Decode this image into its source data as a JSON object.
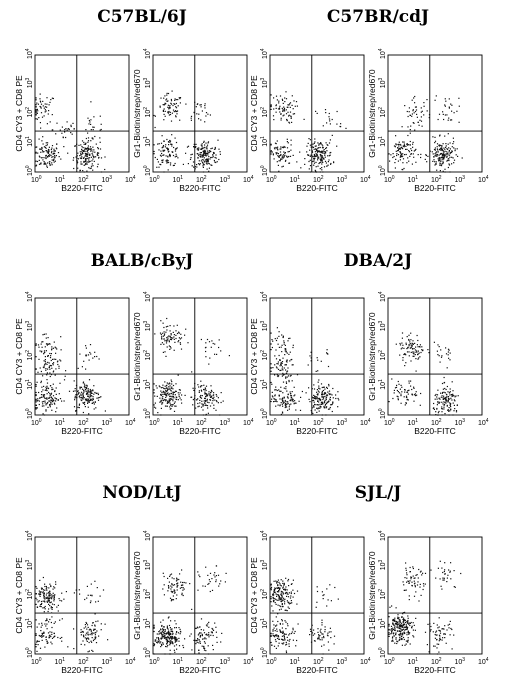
{
  "chart_data": [
    {
      "type": "scatter",
      "title": "C57BL/6J",
      "panels": [
        {
          "xlabel": "B220-FITC",
          "ylabel": "CD4 CY3 + CD8 PE",
          "xscale": "log",
          "yscale": "log",
          "xlim": [
            1,
            10000
          ],
          "ylim": [
            1,
            10000
          ],
          "gate": {
            "x": 60,
            "y": 25
          },
          "clusters": [
            {
              "x": 2,
              "y": 150,
              "n": 55
            },
            {
              "x": 3,
              "y": 4,
              "n": 110
            },
            {
              "x": 150,
              "y": 4,
              "n": 170
            },
            {
              "x": 20,
              "y": 30,
              "n": 25
            },
            {
              "x": 300,
              "y": 40,
              "n": 20
            }
          ]
        },
        {
          "xlabel": "B220-FITC",
          "ylabel": "Gr1-Biotin/strep/red670",
          "xscale": "log",
          "yscale": "log",
          "xlim": [
            1,
            10000
          ],
          "ylim": [
            1,
            10000
          ],
          "gate": {
            "x": 60,
            "y": 25
          },
          "clusters": [
            {
              "x": 5,
              "y": 150,
              "n": 75
            },
            {
              "x": 4,
              "y": 5,
              "n": 100
            },
            {
              "x": 150,
              "y": 4,
              "n": 170
            },
            {
              "x": 80,
              "y": 120,
              "n": 25
            }
          ]
        }
      ]
    },
    {
      "type": "scatter",
      "title": "C57BR/cdJ",
      "panels": [
        {
          "xlabel": "B220-FITC",
          "ylabel": "CD4 CY3 + CD8 PE",
          "xscale": "log",
          "yscale": "log",
          "xlim": [
            1,
            10000
          ],
          "ylim": [
            1,
            10000
          ],
          "gate": {
            "x": 60,
            "y": 25
          },
          "clusters": [
            {
              "x": 3,
              "y": 150,
              "n": 75
            },
            {
              "x": 3,
              "y": 4,
              "n": 80
            },
            {
              "x": 120,
              "y": 4,
              "n": 170
            },
            {
              "x": 300,
              "y": 60,
              "n": 20
            }
          ]
        },
        {
          "xlabel": "B220-FITC",
          "ylabel": "Gr1-Biotin/strep/red670",
          "xscale": "log",
          "yscale": "log",
          "xlim": [
            1,
            10000
          ],
          "ylim": [
            1,
            10000
          ],
          "gate": {
            "x": 60,
            "y": 25
          },
          "clusters": [
            {
              "x": 15,
              "y": 100,
              "n": 45
            },
            {
              "x": 4,
              "y": 5,
              "n": 100
            },
            {
              "x": 200,
              "y": 4,
              "n": 170
            },
            {
              "x": 300,
              "y": 150,
              "n": 30
            }
          ]
        }
      ]
    },
    {
      "type": "scatter",
      "title": "BALB/cByJ",
      "panels": [
        {
          "xlabel": "B220-FITC",
          "ylabel": "CD4 CY3 + CD8 PE",
          "xscale": "log",
          "yscale": "log",
          "xlim": [
            1,
            10000
          ],
          "ylim": [
            1,
            10000
          ],
          "gate": {
            "x": 60,
            "y": 25
          },
          "clusters": [
            {
              "x": 3,
              "y": 250,
              "n": 45
            },
            {
              "x": 3,
              "y": 40,
              "n": 60
            },
            {
              "x": 3,
              "y": 4,
              "n": 120
            },
            {
              "x": 150,
              "y": 5,
              "n": 150
            },
            {
              "x": 200,
              "y": 100,
              "n": 20
            }
          ]
        },
        {
          "xlabel": "B220-FITC",
          "ylabel": "Gr1-Biotin/strep/red670",
          "xscale": "log",
          "yscale": "log",
          "xlim": [
            1,
            10000
          ],
          "ylim": [
            1,
            10000
          ],
          "gate": {
            "x": 60,
            "y": 25
          },
          "clusters": [
            {
              "x": 5,
              "y": 500,
              "n": 80
            },
            {
              "x": 4,
              "y": 5,
              "n": 160
            },
            {
              "x": 150,
              "y": 4,
              "n": 120
            },
            {
              "x": 200,
              "y": 200,
              "n": 20
            }
          ]
        }
      ]
    },
    {
      "type": "scatter",
      "title": "DBA/2J",
      "panels": [
        {
          "xlabel": "B220-FITC",
          "ylabel": "CD4 CY3 + CD8 PE",
          "xscale": "log",
          "yscale": "log",
          "xlim": [
            1,
            10000
          ],
          "ylim": [
            1,
            10000
          ],
          "gate": {
            "x": 60,
            "y": 25
          },
          "clusters": [
            {
              "x": 3,
              "y": 300,
              "n": 40
            },
            {
              "x": 3,
              "y": 40,
              "n": 70
            },
            {
              "x": 4,
              "y": 4,
              "n": 110
            },
            {
              "x": 150,
              "y": 4,
              "n": 160
            },
            {
              "x": 100,
              "y": 100,
              "n": 15
            }
          ]
        },
        {
          "xlabel": "B220-FITC",
          "ylabel": "Gr1-Biotin/strep/red670",
          "xscale": "log",
          "yscale": "log",
          "xlim": [
            1,
            10000
          ],
          "ylim": [
            1,
            10000
          ],
          "gate": {
            "x": 60,
            "y": 25
          },
          "clusters": [
            {
              "x": 10,
              "y": 200,
              "n": 90
            },
            {
              "x": 5,
              "y": 5,
              "n": 60
            },
            {
              "x": 300,
              "y": 3,
              "n": 130
            },
            {
              "x": 200,
              "y": 100,
              "n": 20
            }
          ]
        }
      ]
    },
    {
      "type": "scatter",
      "title": "NOD/LtJ",
      "panels": [
        {
          "xlabel": "B220-FITC",
          "ylabel": "CD4 CY3 + CD8 PE",
          "xscale": "log",
          "yscale": "log",
          "xlim": [
            1,
            10000
          ],
          "ylim": [
            1,
            10000
          ],
          "gate": {
            "x": 60,
            "y": 25
          },
          "clusters": [
            {
              "x": 3,
              "y": 100,
              "n": 130
            },
            {
              "x": 3,
              "y": 5,
              "n": 80
            },
            {
              "x": 200,
              "y": 5,
              "n": 80
            },
            {
              "x": 200,
              "y": 100,
              "n": 20
            }
          ]
        },
        {
          "xlabel": "B220-FITC",
          "ylabel": "Gr1-Biotin/strep/red670",
          "xscale": "log",
          "yscale": "log",
          "xlim": [
            1,
            10000
          ],
          "ylim": [
            1,
            10000
          ],
          "gate": {
            "x": 60,
            "y": 25
          },
          "clusters": [
            {
              "x": 8,
              "y": 200,
              "n": 70
            },
            {
              "x": 4,
              "y": 4,
              "n": 200
            },
            {
              "x": 150,
              "y": 4,
              "n": 80
            },
            {
              "x": 300,
              "y": 300,
              "n": 30
            }
          ]
        }
      ]
    },
    {
      "type": "scatter",
      "title": "SJL/J",
      "panels": [
        {
          "xlabel": "B220-FITC",
          "ylabel": "CD4 CY3 + CD8 PE",
          "xscale": "log",
          "yscale": "log",
          "xlim": [
            1,
            10000
          ],
          "ylim": [
            1,
            10000
          ],
          "gate": {
            "x": 60,
            "y": 25
          },
          "clusters": [
            {
              "x": 3,
              "y": 120,
              "n": 160
            },
            {
              "x": 3,
              "y": 5,
              "n": 100
            },
            {
              "x": 150,
              "y": 5,
              "n": 50
            },
            {
              "x": 200,
              "y": 80,
              "n": 15
            }
          ]
        },
        {
          "xlabel": "B220-FITC",
          "ylabel": "Gr1-Biotin/strep/red670",
          "xscale": "log",
          "yscale": "log",
          "xlim": [
            1,
            10000
          ],
          "ylim": [
            1,
            10000
          ],
          "gate": {
            "x": 60,
            "y": 25
          },
          "clusters": [
            {
              "x": 3,
              "y": 8,
              "n": 220
            },
            {
              "x": 10,
              "y": 300,
              "n": 60
            },
            {
              "x": 150,
              "y": 5,
              "n": 60
            },
            {
              "x": 300,
              "y": 500,
              "n": 30
            }
          ]
        }
      ]
    }
  ]
}
